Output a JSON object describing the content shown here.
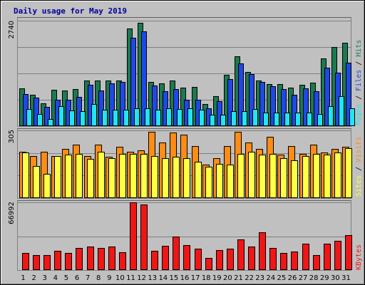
{
  "chart_data": [
    {
      "type": "bar",
      "title": "Daily usage for May 2019",
      "categories": [
        "1",
        "2",
        "3",
        "4",
        "5",
        "6",
        "7",
        "8",
        "9",
        "10",
        "11",
        "12",
        "13",
        "14",
        "15",
        "16",
        "17",
        "18",
        "19",
        "20",
        "21",
        "22",
        "23",
        "24",
        "25",
        "26",
        "27",
        "28",
        "29",
        "30",
        "31"
      ],
      "weekend_days": [
        "4",
        "5",
        "11",
        "12",
        "18",
        "19",
        "25",
        "26"
      ],
      "ymax_label": "2740",
      "ylim": [
        0,
        2740
      ],
      "legend": [
        "Pages",
        "Files",
        "Hits"
      ],
      "series": [
        {
          "name": "Hits",
          "color": "#1c7a50",
          "values": [
            990,
            810,
            600,
            950,
            920,
            960,
            1180,
            1180,
            1190,
            1180,
            2540,
            2680,
            1150,
            1120,
            1190,
            1000,
            1010,
            580,
            770,
            1340,
            1810,
            1400,
            1180,
            1100,
            1100,
            1000,
            1080,
            1130,
            1750,
            2050,
            2170
          ]
        },
        {
          "name": "Files",
          "color": "#1e48e8",
          "values": [
            840,
            740,
            500,
            690,
            680,
            760,
            1070,
            930,
            1110,
            1150,
            2290,
            2460,
            1060,
            900,
            970,
            680,
            690,
            470,
            640,
            1220,
            1630,
            1350,
            1140,
            1030,
            970,
            810,
            990,
            900,
            1510,
            1380,
            1640
          ]
        },
        {
          "name": "Pages",
          "color": "#22e4f2",
          "values": [
            450,
            320,
            180,
            510,
            400,
            390,
            570,
            420,
            420,
            420,
            460,
            460,
            420,
            470,
            450,
            470,
            430,
            300,
            300,
            380,
            390,
            440,
            350,
            350,
            350,
            350,
            350,
            310,
            520,
            780,
            460
          ]
        }
      ]
    },
    {
      "type": "bar",
      "ymax_label": "305",
      "ylim": [
        0,
        305
      ],
      "legend": [
        "Sites",
        "Visits"
      ],
      "series": [
        {
          "name": "Visits",
          "color": "#ff8c14",
          "values": [
            210,
            188,
            210,
            190,
            220,
            240,
            190,
            240,
            185,
            230,
            210,
            215,
            300,
            250,
            295,
            285,
            235,
            150,
            180,
            235,
            300,
            250,
            220,
            275,
            195,
            235,
            200,
            240,
            205,
            220,
            230
          ]
        },
        {
          "name": "Sites",
          "color": "#ffff44",
          "values": [
            205,
            145,
            110,
            190,
            195,
            200,
            175,
            210,
            180,
            200,
            200,
            200,
            190,
            180,
            185,
            180,
            165,
            140,
            155,
            150,
            200,
            210,
            195,
            200,
            180,
            170,
            190,
            200,
            195,
            205,
            225
          ]
        }
      ]
    },
    {
      "type": "bar",
      "ymax_label": "66992",
      "ylim": [
        0,
        66992
      ],
      "legend": [
        "KBytes"
      ],
      "series": [
        {
          "name": "KBytes",
          "color": "#f01616",
          "values": [
            17000,
            14500,
            15000,
            19000,
            17000,
            22000,
            23000,
            22000,
            23500,
            17500,
            67000,
            65000,
            19000,
            24000,
            33000,
            25000,
            21000,
            12000,
            19500,
            21000,
            30000,
            23000,
            37500,
            22000,
            17000,
            18000,
            26000,
            15000,
            26000,
            29000,
            34500
          ]
        }
      ]
    }
  ]
}
